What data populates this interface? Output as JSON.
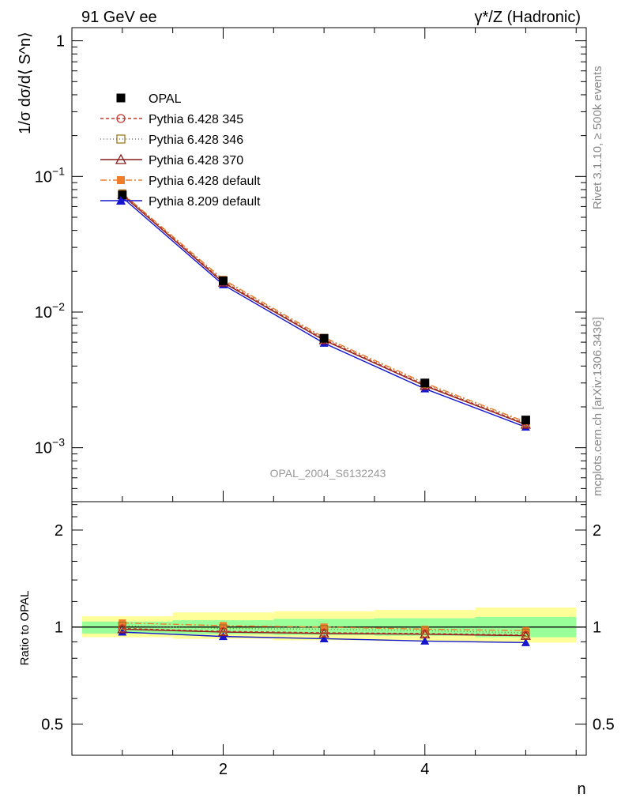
{
  "chart_data": [
    {
      "type": "line",
      "panel": "main",
      "top_left_label": "91 GeV ee",
      "top_right_label": "γ*/Z (Hadronic)",
      "ylabel": "1/σ dσ/d⟨ S^n⟩",
      "yscale": "log",
      "ylim": [
        0.0004,
        1.25
      ],
      "xlim": [
        0.5,
        5.6
      ],
      "y_tick_labels": [
        {
          "base": "1",
          "exp": ""
        },
        {
          "base": "10",
          "exp": "−1"
        },
        {
          "base": "10",
          "exp": "−2"
        },
        {
          "base": "10",
          "exp": "−3"
        }
      ],
      "analysis_label": "OPAL_2004_S6132243",
      "x": [
        1,
        2,
        3,
        4,
        5
      ],
      "series": [
        {
          "name": "OPAL",
          "color": "#000000",
          "marker": "square",
          "dash": "none",
          "values": [
            0.073,
            0.017,
            0.0064,
            0.003,
            0.0016
          ]
        },
        {
          "name": "Pythia 6.428 345",
          "color": "#c0392b",
          "marker": "circle-open",
          "dash": "4,3",
          "values": [
            0.074,
            0.0168,
            0.0063,
            0.0029,
            0.0015
          ]
        },
        {
          "name": "Pythia 6.428 346",
          "color": "#a07820",
          "marker": "square-open",
          "dash": "1,3",
          "values": [
            0.075,
            0.0171,
            0.0064,
            0.00295,
            0.00153
          ]
        },
        {
          "name": "Pythia 6.428 370",
          "color": "#8b1a1a",
          "marker": "triangle-open",
          "dash": "none",
          "values": [
            0.073,
            0.0165,
            0.0062,
            0.00286,
            0.00148
          ]
        },
        {
          "name": "Pythia 6.428 default",
          "color": "#f07d2c",
          "marker": "square-filled",
          "dash": "8,3,2,3",
          "values": [
            0.075,
            0.0174,
            0.0065,
            0.003,
            0.00155
          ]
        },
        {
          "name": "Pythia 8.209 default",
          "color": "#1515d0",
          "marker": "triangle-filled",
          "dash": "none",
          "values": [
            0.07,
            0.0159,
            0.0059,
            0.00272,
            0.00142
          ]
        }
      ]
    },
    {
      "type": "line",
      "panel": "ratio",
      "ylabel": "Ratio to OPAL",
      "xlabel": "n",
      "ylim": [
        0.4,
        2.45
      ],
      "y_tick_labels": [
        "2",
        "1",
        "0.5"
      ],
      "x_tick_labels": [
        "2",
        "4"
      ],
      "reference_line": 1,
      "bands": {
        "bins": [
          [
            0.6,
            1.5
          ],
          [
            1.5,
            2.5
          ],
          [
            2.5,
            3.5
          ],
          [
            3.5,
            4.5
          ],
          [
            4.5,
            5.5
          ]
        ],
        "yellow": [
          [
            0.93,
            1.08
          ],
          [
            0.92,
            1.11
          ],
          [
            0.91,
            1.12
          ],
          [
            0.905,
            1.13
          ],
          [
            0.895,
            1.15
          ]
        ],
        "green": [
          [
            0.955,
            1.04
          ],
          [
            0.95,
            1.05
          ],
          [
            0.945,
            1.06
          ],
          [
            0.94,
            1.065
          ],
          [
            0.93,
            1.075
          ]
        ]
      },
      "x": [
        1,
        2,
        3,
        4,
        5
      ],
      "series": [
        {
          "name": "Pythia 6.428 345",
          "values": [
            0.99,
            0.97,
            0.96,
            0.955,
            0.945
          ]
        },
        {
          "name": "Pythia 6.428 346",
          "values": [
            1.01,
            0.99,
            0.985,
            0.975,
            0.96
          ]
        },
        {
          "name": "Pythia 6.428 370",
          "values": [
            0.985,
            0.965,
            0.955,
            0.95,
            0.94
          ]
        },
        {
          "name": "Pythia 6.428 default",
          "values": [
            1.03,
            1.01,
            1.0,
            0.985,
            0.975
          ]
        },
        {
          "name": "Pythia 8.209 default",
          "values": [
            0.965,
            0.935,
            0.92,
            0.905,
            0.895
          ]
        }
      ]
    }
  ],
  "side_labels": {
    "rivet": "Rivet 3.1.10, ≥ 500k events",
    "mcplots": "mcplots.cern.ch [arXiv:1306.3436]"
  }
}
